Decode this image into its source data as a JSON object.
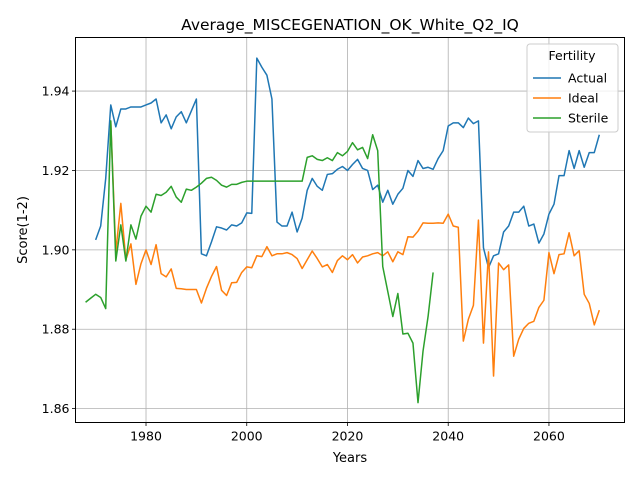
{
  "chart_data": {
    "type": "line",
    "title": "Average_MISCEGENATION_OK_White_Q2_IQ",
    "xlabel": "Years",
    "ylabel": "Score(1-2)",
    "xlim": [
      1966,
      2075
    ],
    "ylim": [
      1.8565,
      1.9535
    ],
    "xticks": [
      1980,
      2000,
      2020,
      2040,
      2060
    ],
    "yticks": [
      1.86,
      1.88,
      1.9,
      1.92,
      1.94
    ],
    "ytick_labels": [
      "1.86",
      "1.88",
      "1.90",
      "1.92",
      "1.94"
    ],
    "grid": true,
    "legend": {
      "title": "Fertility",
      "position": "top-right"
    },
    "series": [
      {
        "name": "Actual",
        "color": "#1f77b4",
        "x": [
          1970,
          1971,
          1972,
          1973,
          1974,
          1975,
          1976,
          1977,
          1978,
          1979,
          1980,
          1981,
          1982,
          1983,
          1984,
          1985,
          1986,
          1987,
          1988,
          1989,
          1990,
          1991,
          1992,
          1993,
          1994,
          1995,
          1996,
          1997,
          1998,
          1999,
          2000,
          2001,
          2002,
          2003,
          2004,
          2005,
          2006,
          2007,
          2008,
          2009,
          2010,
          2011,
          2012,
          2013,
          2014,
          2015,
          2016,
          2017,
          2018,
          2019,
          2020,
          2021,
          2022,
          2023,
          2024,
          2025,
          2026,
          2027,
          2028,
          2029,
          2030,
          2031,
          2032,
          2033,
          2034,
          2035,
          2036,
          2037,
          2038,
          2039,
          2040,
          2041,
          2042,
          2043,
          2044,
          2045,
          2046,
          2047,
          2048,
          2049,
          2050,
          2051,
          2052,
          2053,
          2054,
          2055,
          2056,
          2057,
          2058,
          2059,
          2060,
          2061,
          2062,
          2063,
          2064,
          2065,
          2066,
          2067,
          2068,
          2069,
          2070
        ],
        "y": [
          1.9025,
          1.906,
          1.918,
          1.9365,
          1.931,
          1.9355,
          1.9355,
          1.936,
          1.936,
          1.936,
          1.9365,
          1.937,
          1.938,
          1.932,
          1.934,
          1.9305,
          1.9335,
          1.9348,
          1.932,
          1.935,
          1.938,
          1.899,
          1.8985,
          1.902,
          1.9058,
          1.9055,
          1.905,
          1.9063,
          1.906,
          1.9068,
          1.9093,
          1.9092,
          1.9483,
          1.946,
          1.944,
          1.938,
          1.907,
          1.906,
          1.906,
          1.9095,
          1.9045,
          1.908,
          1.915,
          1.918,
          1.916,
          1.915,
          1.919,
          1.9192,
          1.9203,
          1.921,
          1.92,
          1.9215,
          1.9228,
          1.9205,
          1.92,
          1.9152,
          1.9163,
          1.912,
          1.915,
          1.9115,
          1.914,
          1.9155,
          1.92,
          1.9185,
          1.9225,
          1.9205,
          1.9208,
          1.9203,
          1.923,
          1.925,
          1.9312,
          1.932,
          1.932,
          1.9308,
          1.9332,
          1.9318,
          1.9325,
          1.9005,
          1.8955,
          1.8985,
          1.899,
          1.9045,
          1.906,
          1.9095,
          1.9095,
          1.911,
          1.906,
          1.9065,
          1.9017,
          1.904,
          1.909,
          1.9115,
          1.9187,
          1.9187,
          1.925,
          1.9205,
          1.925,
          1.9208,
          1.9245,
          1.9245,
          1.929
        ]
      },
      {
        "name": "Ideal",
        "color": "#ff7f0e",
        "x": [
          1973,
          1974,
          1975,
          1976,
          1977,
          1978,
          1979,
          1980,
          1981,
          1982,
          1983,
          1984,
          1985,
          1986,
          1987,
          1988,
          1989,
          1990,
          1991,
          1992,
          1993,
          1994,
          1995,
          1996,
          1997,
          1998,
          1999,
          2000,
          2001,
          2002,
          2003,
          2004,
          2005,
          2006,
          2007,
          2008,
          2009,
          2010,
          2011,
          2012,
          2013,
          2014,
          2015,
          2016,
          2017,
          2018,
          2019,
          2020,
          2021,
          2022,
          2023,
          2024,
          2025,
          2026,
          2027,
          2028,
          2029,
          2030,
          2031,
          2032,
          2033,
          2034,
          2035,
          2036,
          2037,
          2038,
          2039,
          2040,
          2041,
          2042,
          2043,
          2044,
          2045,
          2046,
          2047,
          2048,
          2049,
          2050,
          2051,
          2052,
          2053,
          2054,
          2055,
          2056,
          2057,
          2058,
          2059,
          2060,
          2061,
          2062,
          2063,
          2064,
          2065,
          2066,
          2067,
          2068,
          2069,
          2070
        ],
        "y": [
          1.9325,
          1.8995,
          1.9117,
          1.8975,
          1.9015,
          1.8913,
          1.8965,
          1.9,
          1.8963,
          1.9013,
          1.894,
          1.8932,
          1.8952,
          1.8903,
          1.8902,
          1.89,
          1.89,
          1.89,
          1.8866,
          1.8903,
          1.8933,
          1.8958,
          1.8898,
          1.8885,
          1.8917,
          1.8918,
          1.8943,
          1.8957,
          1.8955,
          1.8985,
          1.8983,
          1.9008,
          1.8985,
          1.899,
          1.899,
          1.8993,
          1.8988,
          1.8978,
          1.8953,
          1.8975,
          1.8997,
          1.8978,
          1.8957,
          1.8963,
          1.8943,
          1.8973,
          1.8985,
          1.8975,
          1.8988,
          1.8967,
          1.8982,
          1.8985,
          1.899,
          1.8993,
          1.8985,
          1.8995,
          1.897,
          1.8995,
          1.8988,
          1.9033,
          1.9032,
          1.9047,
          1.9068,
          1.9067,
          1.9067,
          1.9068,
          1.9067,
          1.909,
          1.906,
          1.9057,
          1.877,
          1.8825,
          1.886,
          1.9075,
          1.8765,
          1.8995,
          1.8682,
          1.8967,
          1.895,
          1.8962,
          1.8732,
          1.8775,
          1.8802,
          1.8815,
          1.882,
          1.8855,
          1.8873,
          1.8993,
          1.894,
          1.8988,
          1.899,
          1.9043,
          1.8985,
          1.8998,
          1.8888,
          1.8865,
          1.8811,
          1.8848
        ]
      },
      {
        "name": "Sterile",
        "color": "#2ca02c",
        "x": [
          1968,
          1969,
          1970,
          1971,
          1972,
          1973,
          1974,
          1975,
          1976,
          1977,
          1978,
          1979,
          1980,
          1981,
          1982,
          1983,
          1984,
          1985,
          1986,
          1987,
          1988,
          1989,
          1990,
          1991,
          1992,
          1993,
          1994,
          1995,
          1996,
          1997,
          1998,
          1999,
          2000,
          2001,
          2002,
          2003,
          2004,
          2005,
          2006,
          2007,
          2008,
          2009,
          2010,
          2011,
          2012,
          2013,
          2014,
          2015,
          2016,
          2017,
          2018,
          2019,
          2020,
          2021,
          2022,
          2023,
          2024,
          2025,
          2026,
          2027,
          2028,
          2029,
          2030,
          2031,
          2032,
          2033,
          2034,
          2035,
          2036,
          2037
        ],
        "y": [
          1.8868,
          1.8878,
          1.8888,
          1.888,
          1.8852,
          1.9325,
          1.8972,
          1.9063,
          1.8972,
          1.9063,
          1.9027,
          1.9085,
          1.911,
          1.9095,
          1.914,
          1.9137,
          1.9145,
          1.916,
          1.9133,
          1.912,
          1.9153,
          1.915,
          1.9158,
          1.9168,
          1.918,
          1.9183,
          1.9175,
          1.9163,
          1.9158,
          1.9165,
          1.9165,
          1.917,
          1.9173,
          1.9173,
          1.9173,
          1.9173,
          1.9173,
          1.9173,
          1.9173,
          1.9173,
          1.9173,
          1.9173,
          1.9173,
          1.9173,
          1.9233,
          1.9237,
          1.9228,
          1.9225,
          1.9232,
          1.9225,
          1.9245,
          1.9237,
          1.9248,
          1.927,
          1.9252,
          1.9258,
          1.923,
          1.929,
          1.925,
          1.8958,
          1.8895,
          1.8832,
          1.889,
          1.8788,
          1.879,
          1.8765,
          1.8615,
          1.8745,
          1.8832,
          1.8943
        ]
      }
    ]
  }
}
